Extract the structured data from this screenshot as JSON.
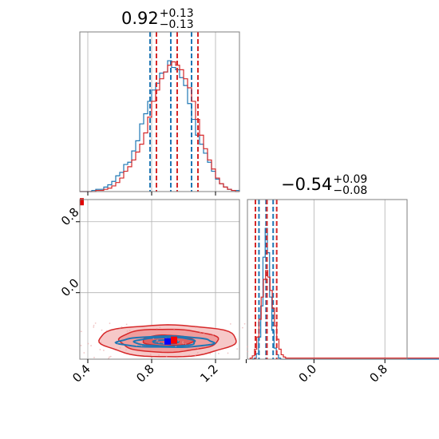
{
  "chart_data": {
    "type": "corner",
    "parameters": [
      "param_1",
      "param_2"
    ],
    "panels": [
      {
        "panel": "param_1-histogram",
        "type": "histogram",
        "title_value": "0.92",
        "title_plus": "+0.13",
        "title_minus": "−0.13",
        "xlim": [
          0.35,
          1.35
        ],
        "series": [
          {
            "name": "",
            "color": "#1f77b4",
            "bins_x": [
              0.35,
              0.375,
              0.4,
              0.425,
              0.45,
              0.475,
              0.5,
              0.525,
              0.55,
              0.575,
              0.6,
              0.625,
              0.65,
              0.675,
              0.7,
              0.725,
              0.75,
              0.775,
              0.8,
              0.825,
              0.85,
              0.875,
              0.9,
              0.925,
              0.95,
              0.975,
              1.0,
              1.025,
              1.05,
              1.075,
              1.1,
              1.125,
              1.15,
              1.175,
              1.2,
              1.225,
              1.25,
              1.275,
              1.3,
              1.325
            ],
            "counts": [
              0,
              0,
              0,
              1,
              2,
              2,
              4,
              6,
              9,
              14,
              17,
              24,
              26,
              36,
              45,
              60,
              69,
              80,
              90,
              96,
              105,
              106,
              116,
              110,
              108,
              101,
              94,
              78,
              64,
              50,
              42,
              34,
              26,
              18,
              11,
              7,
              4,
              2,
              1,
              1
            ],
            "quantile_lines": [
              0.79,
              0.92,
              1.05
            ]
          },
          {
            "name": "",
            "color": "#d62728",
            "bins_x": [
              0.35,
              0.375,
              0.4,
              0.425,
              0.45,
              0.475,
              0.5,
              0.525,
              0.55,
              0.575,
              0.6,
              0.625,
              0.65,
              0.675,
              0.7,
              0.725,
              0.75,
              0.775,
              0.8,
              0.825,
              0.85,
              0.875,
              0.9,
              0.925,
              0.95,
              0.975,
              1.0,
              1.025,
              1.05,
              1.075,
              1.1,
              1.125,
              1.15,
              1.175,
              1.2,
              1.225,
              1.25,
              1.275,
              1.3,
              1.325
            ],
            "counts": [
              0,
              0,
              0,
              0,
              1,
              1,
              2,
              3,
              5,
              8,
              12,
              18,
              22,
              28,
              35,
              42,
              52,
              66,
              80,
              90,
              100,
              106,
              112,
              115,
              112,
              108,
              100,
              92,
              80,
              64,
              50,
              38,
              28,
              20,
              12,
              7,
              4,
              2,
              1,
              0
            ],
            "quantile_lines": [
              0.83,
              0.96,
              1.09
            ]
          }
        ]
      },
      {
        "panel": "param_2-histogram",
        "type": "histogram",
        "title_value": "−0.54",
        "title_plus": "+0.09",
        "title_minus": "−0.08",
        "xlim": [
          -0.75,
          1.05
        ],
        "xticks": [
          "0.0",
          "0.8"
        ],
        "series": [
          {
            "name": "",
            "color": "#1f77b4",
            "bins_x": [
              -0.7,
              -0.675,
              -0.65,
              -0.625,
              -0.6,
              -0.575,
              -0.55,
              -0.525,
              -0.5,
              -0.475,
              -0.45,
              -0.425,
              -0.4,
              -0.375,
              -0.35
            ],
            "counts": [
              0,
              1,
              5,
              20,
              48,
              92,
              118,
              96,
              56,
              26,
              10,
              4,
              1,
              0,
              0
            ],
            "quantile_lines": [
              -0.62,
              -0.54,
              -0.46
            ]
          },
          {
            "name": "",
            "color": "#d62728",
            "bins_x": [
              -0.72,
              -0.695,
              -0.67,
              -0.645,
              -0.62,
              -0.595,
              -0.57,
              -0.545,
              -0.52,
              -0.495,
              -0.47,
              -0.445,
              -0.42,
              -0.395,
              -0.37,
              -0.345,
              -0.32
            ],
            "counts": [
              1,
              3,
              9,
              20,
              36,
              56,
              72,
              80,
              74,
              62,
              46,
              30,
              18,
              9,
              4,
              2,
              1
            ],
            "quantile_lines": [
              -0.66,
              -0.53,
              -0.42
            ]
          }
        ]
      },
      {
        "panel": "param_1-vs-param_2",
        "type": "contour",
        "xlim": [
          0.35,
          1.35
        ],
        "ylim": [
          -0.75,
          1.05
        ],
        "xticks": [
          "0.4",
          "0.8",
          "1.2"
        ],
        "yticks": [
          "0.0",
          "0.8"
        ],
        "series": [
          {
            "name": "",
            "color": "#1f77b4",
            "center": [
              0.89,
              -0.555
            ],
            "levels_sd": [
              [
                0.08,
                0.022
              ],
              [
                0.19,
                0.05
              ],
              [
                0.3,
                0.062
              ]
            ],
            "marker": [
              0.9,
              -0.55
            ]
          },
          {
            "name": "",
            "color": "#d62728",
            "center": [
              0.9,
              -0.54
            ],
            "levels_sd": [
              [
                0.16,
                0.06
              ],
              [
                0.31,
                0.13
              ],
              [
                0.43,
                0.18
              ]
            ],
            "marker": [
              0.94,
              -0.54
            ]
          }
        ],
        "truth_marker": {
          "color": "#e00000",
          "point": [
            0.35,
            1.03
          ]
        }
      }
    ]
  }
}
